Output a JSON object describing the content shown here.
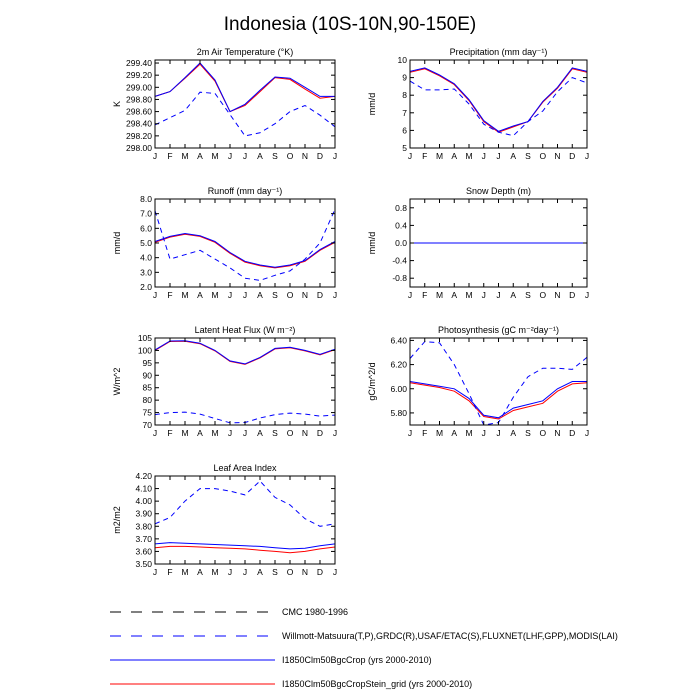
{
  "title": "Indonesia (10S-10N,90-150E)",
  "months": [
    "J",
    "F",
    "M",
    "A",
    "M",
    "J",
    "J",
    "A",
    "S",
    "O",
    "N",
    "D",
    "J"
  ],
  "colors": {
    "model_a": "#0000ff",
    "model_b": "#ff0000",
    "obs": "#0000ff",
    "axis": "#000000"
  },
  "legend": [
    {
      "label": "CMC 1980-1996",
      "color": "#000000",
      "style": "dashed"
    },
    {
      "label": "Willmott-Matsuura(T,P),GRDC(R),USAF/ETAC(S),FLUXNET(LHF,GPP),MODIS(LAI)",
      "color": "#0000ff",
      "style": "dashed"
    },
    {
      "label": "I1850Clm50BgcCrop (yrs 2000-2010)",
      "color": "#0000ff",
      "style": "solid"
    },
    {
      "label": "I1850Clm50BgcCropStein_grid (yrs 2000-2010)",
      "color": "#ff0000",
      "style": "solid"
    }
  ],
  "chart_data": [
    {
      "type": "line",
      "title": "2m Air Temperature (°K)",
      "ylabel": "K",
      "ylim": [
        298.0,
        299.45
      ],
      "yticks": [
        298.0,
        298.2,
        298.4,
        298.6,
        298.8,
        299.0,
        299.2,
        299.4
      ],
      "yticklabels": [
        "298.00",
        "298.20",
        "298.40",
        "298.60",
        "298.80",
        "299.00",
        "299.20",
        "299.40"
      ],
      "series": [
        {
          "color": "#ff0000",
          "dash": false,
          "values": [
            298.85,
            298.93,
            299.15,
            299.38,
            299.1,
            298.6,
            298.7,
            298.93,
            299.16,
            299.13,
            298.97,
            298.82,
            298.85
          ]
        },
        {
          "color": "#0000ff",
          "dash": false,
          "values": [
            298.85,
            298.93,
            299.16,
            299.4,
            299.12,
            298.6,
            298.72,
            298.95,
            299.17,
            299.15,
            299.0,
            298.85,
            298.85
          ]
        },
        {
          "color": "#0000ff",
          "dash": true,
          "values": [
            298.38,
            298.5,
            298.62,
            298.92,
            298.9,
            298.55,
            298.2,
            298.25,
            298.4,
            298.6,
            298.7,
            298.54,
            298.35
          ]
        }
      ]
    },
    {
      "type": "line",
      "title": "Precipitation (mm day⁻¹)",
      "ylabel": "mm/d",
      "ylim": [
        5,
        10
      ],
      "yticks": [
        5,
        6,
        7,
        8,
        9,
        10
      ],
      "yticklabels": [
        "5",
        "6",
        "7",
        "8",
        "9",
        "10"
      ],
      "series": [
        {
          "color": "#ff0000",
          "dash": false,
          "values": [
            9.3,
            9.5,
            9.1,
            8.6,
            7.7,
            6.5,
            5.9,
            6.2,
            6.5,
            7.6,
            8.4,
            9.5,
            9.3
          ]
        },
        {
          "color": "#0000ff",
          "dash": false,
          "values": [
            9.35,
            9.55,
            9.15,
            8.65,
            7.75,
            6.55,
            5.95,
            6.25,
            6.5,
            7.65,
            8.45,
            9.55,
            9.35
          ]
        },
        {
          "color": "#0000ff",
          "dash": true,
          "values": [
            8.8,
            8.3,
            8.3,
            8.35,
            7.5,
            6.35,
            5.9,
            5.7,
            6.5,
            7.1,
            8.2,
            9.0,
            8.7
          ]
        }
      ]
    },
    {
      "type": "line",
      "title": "Runoff (mm day⁻¹)",
      "ylabel": "mm/d",
      "ylim": [
        2.0,
        8.0
      ],
      "yticks": [
        2,
        3,
        4,
        5,
        6,
        7,
        8
      ],
      "yticklabels": [
        "2.0",
        "3.0",
        "4.0",
        "5.0",
        "6.0",
        "7.0",
        "8.0"
      ],
      "series": [
        {
          "color": "#ff0000",
          "dash": false,
          "values": [
            5.05,
            5.4,
            5.6,
            5.45,
            5.05,
            4.3,
            3.7,
            3.45,
            3.3,
            3.45,
            3.75,
            4.5,
            5.05
          ]
        },
        {
          "color": "#0000ff",
          "dash": false,
          "values": [
            5.1,
            5.45,
            5.65,
            5.5,
            5.1,
            4.35,
            3.75,
            3.5,
            3.35,
            3.5,
            3.8,
            4.55,
            5.1
          ]
        },
        {
          "color": "#0000ff",
          "dash": true,
          "values": [
            7.2,
            3.9,
            4.2,
            4.5,
            3.9,
            3.3,
            2.6,
            2.45,
            2.8,
            3.1,
            3.9,
            5.0,
            7.3
          ]
        }
      ]
    },
    {
      "type": "line",
      "title": "Snow Depth (m)",
      "ylabel": "mm/d",
      "ylim": [
        -1.0,
        1.0
      ],
      "yticks": [
        -0.8,
        -0.4,
        0.0,
        0.4,
        0.8
      ],
      "yticklabels": [
        "-0.8",
        "-0.4",
        "0.0",
        "0.4",
        "0.8"
      ],
      "series": [
        {
          "color": "#ff0000",
          "dash": false,
          "values": [
            0,
            0,
            0,
            0,
            0,
            0,
            0,
            0,
            0,
            0,
            0,
            0,
            0
          ]
        },
        {
          "color": "#0000ff",
          "dash": false,
          "values": [
            0,
            0,
            0,
            0,
            0,
            0,
            0,
            0,
            0,
            0,
            0,
            0,
            0
          ]
        }
      ]
    },
    {
      "type": "line",
      "title": "Latent Heat Flux (W m⁻²)",
      "ylabel": "W/m^2",
      "ylim": [
        70,
        105
      ],
      "yticks": [
        70,
        75,
        80,
        85,
        90,
        95,
        100,
        105
      ],
      "yticklabels": [
        "70",
        "75",
        "80",
        "85",
        "90",
        "95",
        "100",
        "105"
      ],
      "series": [
        {
          "color": "#ff0000",
          "dash": false,
          "values": [
            100.0,
            103.6,
            103.7,
            102.7,
            99.8,
            95.6,
            94.4,
            97.0,
            100.6,
            101.1,
            99.8,
            98.2,
            100.3
          ]
        },
        {
          "color": "#0000ff",
          "dash": false,
          "values": [
            100.2,
            103.8,
            103.9,
            102.9,
            100.0,
            95.8,
            94.6,
            97.2,
            100.8,
            101.3,
            100.0,
            98.4,
            100.5
          ]
        },
        {
          "color": "#0000ff",
          "dash": true,
          "values": [
            74.2,
            75.0,
            75.2,
            74.4,
            72.6,
            70.9,
            71.0,
            72.8,
            74.2,
            74.8,
            74.4,
            73.6,
            74.0
          ]
        }
      ]
    },
    {
      "type": "line",
      "title": "Photosynthesis (gC m⁻²day⁻¹)",
      "ylabel": "gC/m^2/d",
      "ylim": [
        5.7,
        6.42
      ],
      "yticks": [
        5.8,
        6.0,
        6.2,
        6.4
      ],
      "yticklabels": [
        "5.80",
        "6.00",
        "6.20",
        "6.40"
      ],
      "series": [
        {
          "color": "#ff0000",
          "dash": false,
          "values": [
            6.05,
            6.03,
            6.01,
            5.98,
            5.9,
            5.77,
            5.75,
            5.82,
            5.85,
            5.88,
            5.98,
            6.04,
            6.05
          ]
        },
        {
          "color": "#0000ff",
          "dash": false,
          "values": [
            6.06,
            6.04,
            6.02,
            6.0,
            5.92,
            5.78,
            5.76,
            5.84,
            5.87,
            5.9,
            6.0,
            6.06,
            6.06
          ]
        },
        {
          "color": "#0000ff",
          "dash": true,
          "values": [
            6.25,
            6.39,
            6.38,
            6.2,
            5.96,
            5.7,
            5.72,
            5.93,
            6.1,
            6.17,
            6.17,
            6.16,
            6.26
          ]
        }
      ]
    },
    {
      "type": "line",
      "title": "Leaf Area Index",
      "ylabel": "m2/m2",
      "ylim": [
        3.5,
        4.2
      ],
      "yticks": [
        3.5,
        3.6,
        3.7,
        3.8,
        3.9,
        4.0,
        4.1,
        4.2
      ],
      "yticklabels": [
        "3.50",
        "3.60",
        "3.70",
        "3.80",
        "3.90",
        "4.00",
        "4.10",
        "4.20"
      ],
      "series": [
        {
          "color": "#ff0000",
          "dash": false,
          "values": [
            3.63,
            3.64,
            3.64,
            3.635,
            3.63,
            3.625,
            3.62,
            3.61,
            3.6,
            3.59,
            3.6,
            3.62,
            3.635
          ]
        },
        {
          "color": "#0000ff",
          "dash": false,
          "values": [
            3.66,
            3.67,
            3.665,
            3.66,
            3.655,
            3.65,
            3.645,
            3.64,
            3.63,
            3.62,
            3.625,
            3.645,
            3.66
          ]
        },
        {
          "color": "#0000ff",
          "dash": true,
          "values": [
            3.82,
            3.87,
            4.0,
            4.1,
            4.1,
            4.08,
            4.05,
            4.16,
            4.03,
            3.97,
            3.86,
            3.8,
            3.82
          ]
        }
      ]
    }
  ]
}
